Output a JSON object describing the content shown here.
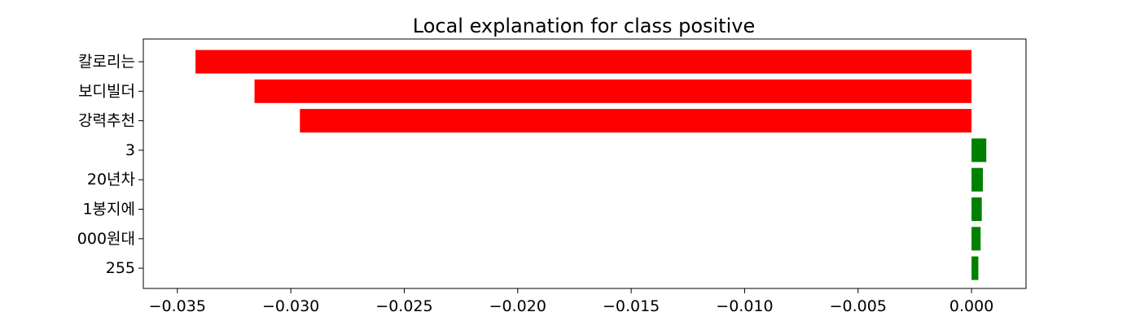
{
  "chart_data": {
    "type": "bar",
    "orientation": "horizontal",
    "title": "Local explanation for class positive",
    "xlabel": "",
    "ylabel": "",
    "categories": [
      "칼로리는",
      "보디빌더",
      "강력추천",
      "3",
      "20년차",
      "1봉지에",
      "000원대",
      "255"
    ],
    "values": [
      -0.0342,
      -0.0316,
      -0.0296,
      0.00065,
      0.0005,
      0.00045,
      0.0004,
      0.0003
    ],
    "colors": {
      "negative": "#ff0000",
      "positive": "#008000"
    },
    "xlim": [
      -0.0365,
      0.0024
    ],
    "xticks": [
      -0.035,
      -0.03,
      -0.025,
      -0.02,
      -0.015,
      -0.01,
      -0.005,
      0.0
    ],
    "xtick_labels": [
      "−0.035",
      "−0.030",
      "−0.025",
      "−0.020",
      "−0.015",
      "−0.010",
      "−0.005",
      "0.000"
    ],
    "grid": false,
    "legend": "none"
  }
}
